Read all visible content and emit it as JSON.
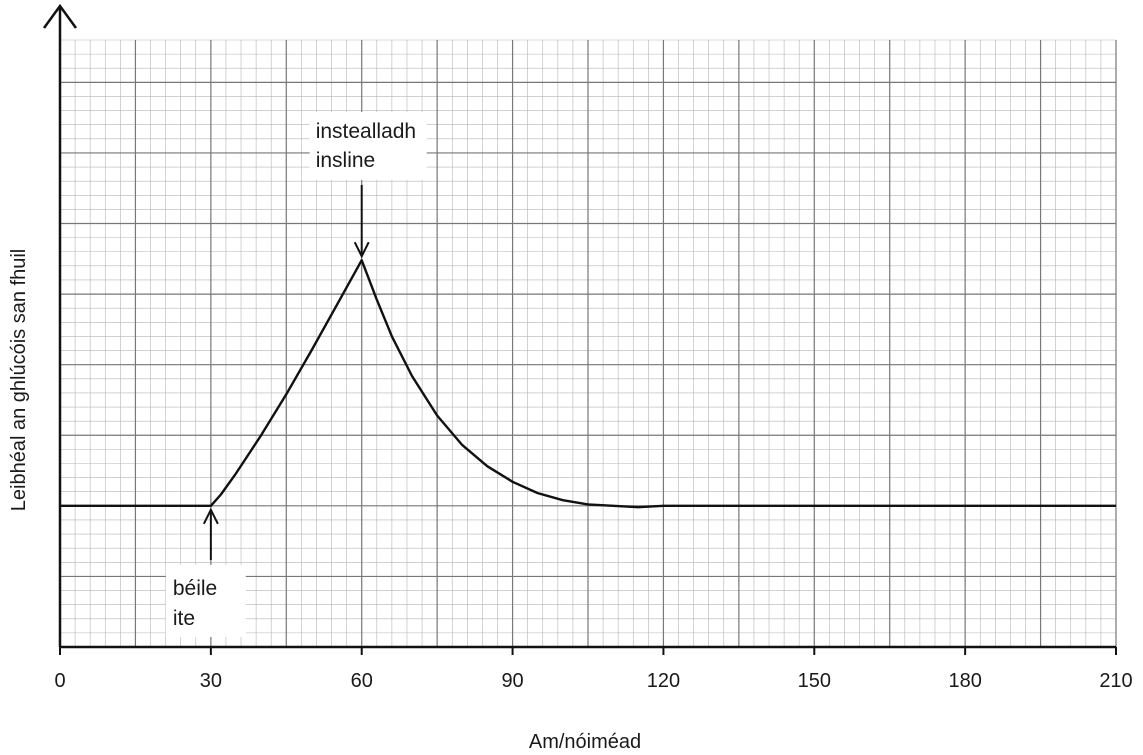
{
  "chart_data": {
    "type": "line",
    "title": "",
    "xlabel": "Am/nóiméad",
    "ylabel": "Leibhéal an ghlúcóis san fhuil",
    "xlim": [
      0,
      210
    ],
    "ylim": [
      0,
      4.3
    ],
    "x_ticks": [
      "0",
      "30",
      "60",
      "90",
      "120",
      "150",
      "180",
      "210"
    ],
    "y_tick_labels": false,
    "grid": true,
    "series": [
      {
        "x": [
          0,
          30,
          32,
          35,
          40,
          45,
          50,
          55,
          60,
          63,
          66,
          70,
          75,
          80,
          85,
          90,
          95,
          100,
          105,
          110,
          115,
          120,
          150,
          180,
          210
        ],
        "y": [
          1.0,
          1.0,
          1.08,
          1.23,
          1.5,
          1.79,
          2.1,
          2.42,
          2.74,
          2.46,
          2.2,
          1.92,
          1.64,
          1.43,
          1.28,
          1.17,
          1.09,
          1.04,
          1.01,
          1.0,
          0.99,
          1.0,
          1.0,
          1.0,
          1.0
        ]
      }
    ],
    "annotations": [
      {
        "lines": [
          "béile",
          "ite"
        ],
        "x": 30,
        "y": 1.0
      },
      {
        "lines": [
          "instealladh",
          "insline"
        ],
        "x": 60,
        "y": 2.74
      }
    ]
  }
}
